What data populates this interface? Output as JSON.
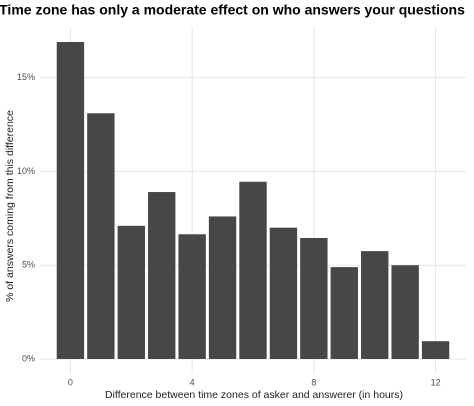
{
  "chart_data": {
    "type": "bar",
    "title": "Time zone has only a moderate effect on who answers your questions",
    "x_label": "Difference between time zones of asker and answerer (in hours)",
    "y_label": "% of answers coming from this difference",
    "x": [
      0,
      1,
      2,
      3,
      4,
      5,
      6,
      7,
      8,
      9,
      10,
      11,
      12
    ],
    "values": [
      16.9,
      13.1,
      7.1,
      8.9,
      6.65,
      7.6,
      9.45,
      7.0,
      6.45,
      4.9,
      5.75,
      5.0,
      0.95
    ],
    "color": "#474747",
    "xlim": [
      -1,
      13
    ],
    "xticks": [
      0,
      4,
      8,
      12
    ],
    "ylim": [
      -0.8,
      17.7
    ],
    "yticks": [
      {
        "value": 0,
        "label": "0%"
      },
      {
        "value": 5,
        "label": "5%"
      },
      {
        "value": 10,
        "label": "10%"
      },
      {
        "value": 15,
        "label": "15%"
      }
    ],
    "grid": true
  }
}
